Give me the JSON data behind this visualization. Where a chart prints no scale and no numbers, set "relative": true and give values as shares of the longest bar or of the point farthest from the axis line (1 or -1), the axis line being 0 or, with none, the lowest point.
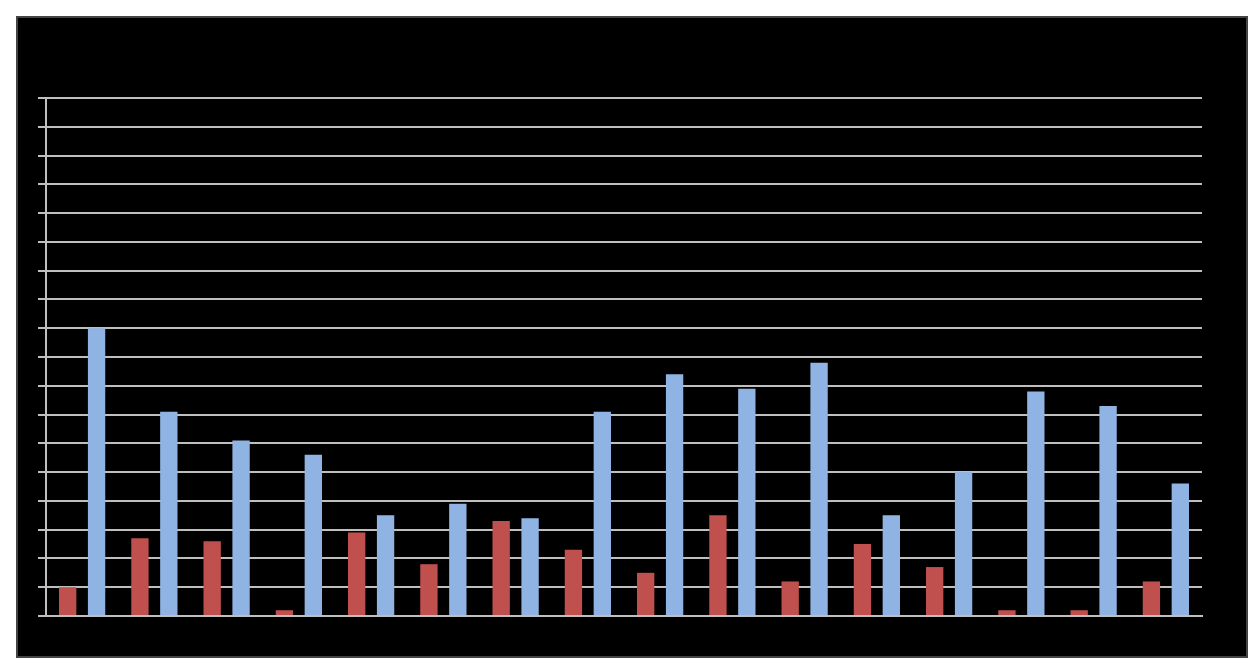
{
  "chart_data": {
    "type": "bar",
    "relative": true,
    "grid": "y",
    "categories": [
      null,
      null,
      null,
      null,
      null,
      null,
      null,
      null,
      null,
      null,
      null,
      null,
      null,
      null,
      null,
      null
    ],
    "series": [
      {
        "color": "#c0504d",
        "values": [
          0.1,
          0.27,
          0.26,
          0.02,
          0.29,
          0.18,
          0.33,
          0.23,
          0.15,
          0.35,
          0.12,
          0.25,
          0.17,
          0.02,
          0.02,
          0.12
        ]
      },
      {
        "color": "#8fb4e3",
        "values": [
          1,
          0.71,
          0.61,
          0.56,
          0.35,
          0.39,
          0.34,
          0.71,
          0.84,
          0.79,
          0.88,
          0.35,
          0.5,
          0.78,
          0.73,
          0.46
        ]
      }
    ]
  }
}
